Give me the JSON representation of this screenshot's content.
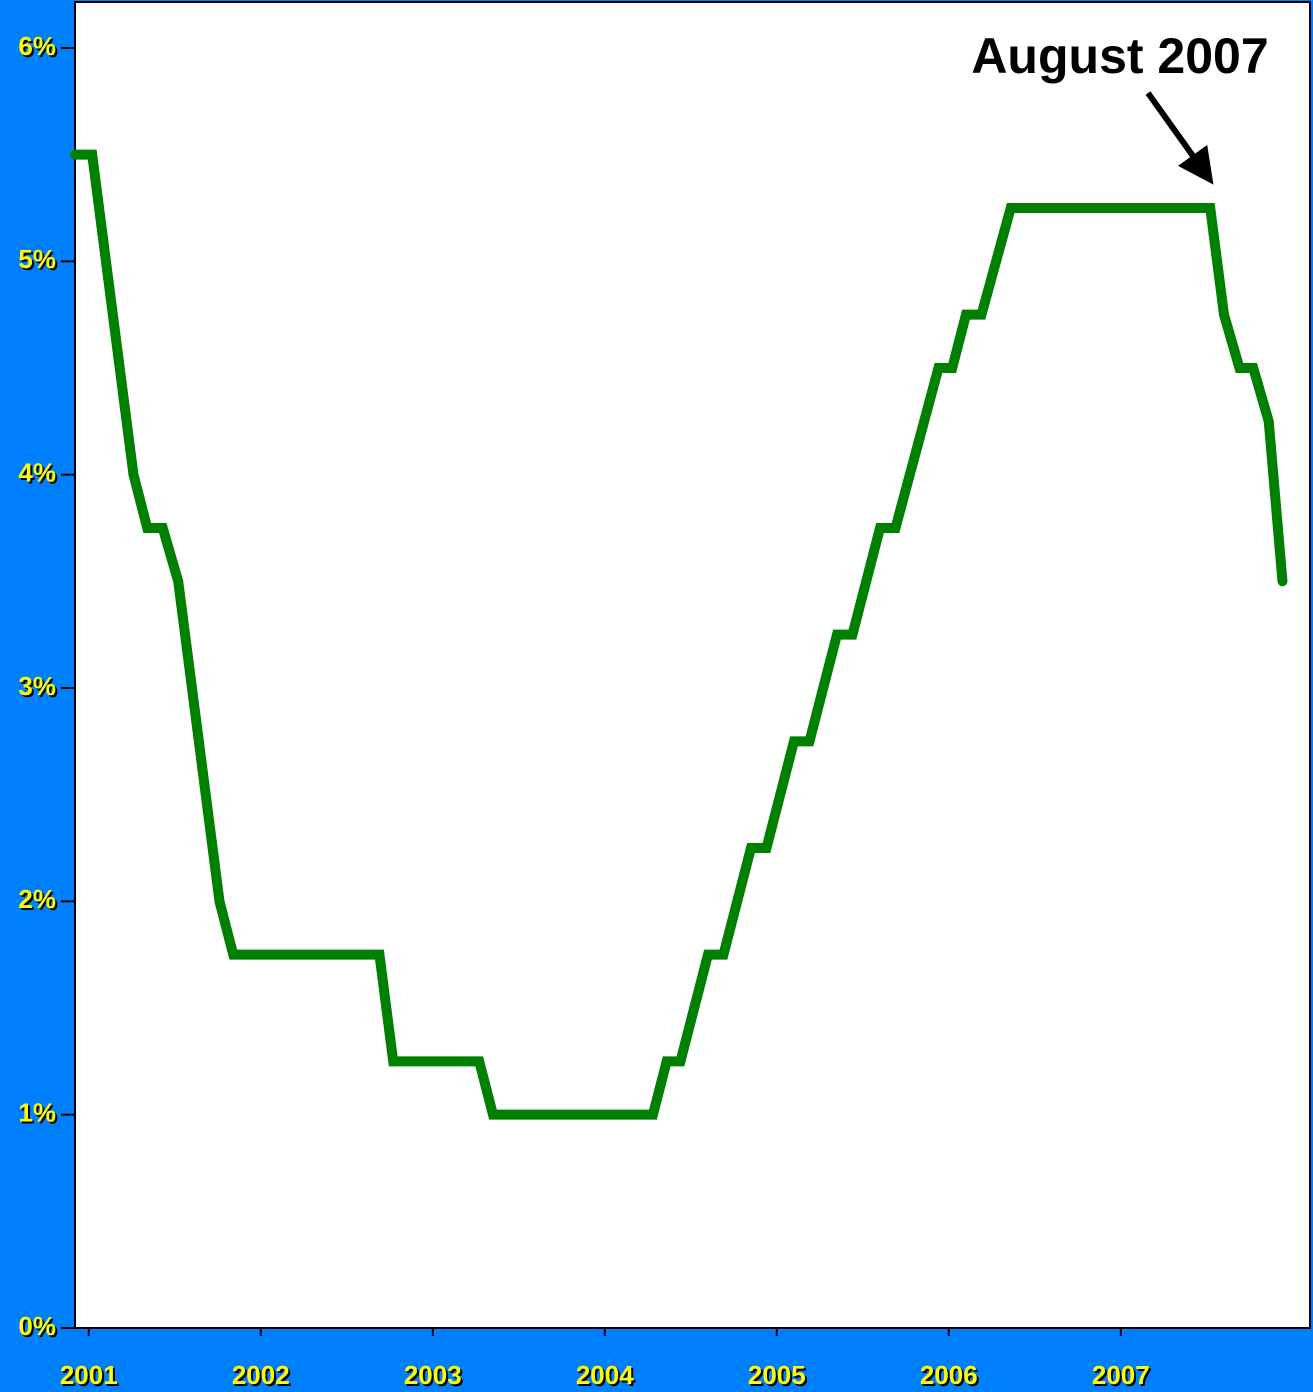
{
  "chart_data": {
    "type": "line",
    "x": [
      2000.92,
      2001.02,
      2001.26,
      2001.34,
      2001.43,
      2001.52,
      2001.76,
      2001.84,
      2002.69,
      2002.77,
      2003.27,
      2003.35,
      2004.28,
      2004.36,
      2004.44,
      2004.6,
      2004.69,
      2004.85,
      2004.94,
      2005.1,
      2005.19,
      2005.35,
      2005.44,
      2005.6,
      2005.69,
      2005.94,
      2006.02,
      2006.1,
      2006.19,
      2006.36,
      2007.52,
      2007.6,
      2007.69,
      2007.77,
      2007.86,
      2007.94
    ],
    "series": [
      {
        "color": "#008000",
        "values": [
          5.5,
          5.5,
          4,
          3.75,
          3.75,
          3.5,
          2,
          1.75,
          1.75,
          1.25,
          1.25,
          1,
          1,
          1.25,
          1.25,
          1.75,
          1.75,
          2.25,
          2.25,
          2.75,
          2.75,
          3.25,
          3.25,
          3.75,
          3.75,
          4.5,
          4.5,
          4.75,
          4.75,
          5.25,
          5.25,
          4.75,
          4.5,
          4.5,
          4.25,
          3.5
        ]
      }
    ],
    "xlim": [
      2000.92,
      2008.1
    ],
    "xticks": [
      2001,
      2002,
      2003,
      2004,
      2005,
      2006,
      2007
    ],
    "ylim": [
      0,
      6
    ],
    "yticks": [
      {
        "value": 0,
        "label": "0%"
      },
      {
        "value": 1,
        "label": "1%"
      },
      {
        "value": 2,
        "label": "2%"
      },
      {
        "value": 3,
        "label": "3%"
      },
      {
        "value": 4,
        "label": "4%"
      },
      {
        "value": 5,
        "label": "5%"
      },
      {
        "value": 6,
        "label": "6%"
      }
    ],
    "annotation": "August 2007"
  }
}
